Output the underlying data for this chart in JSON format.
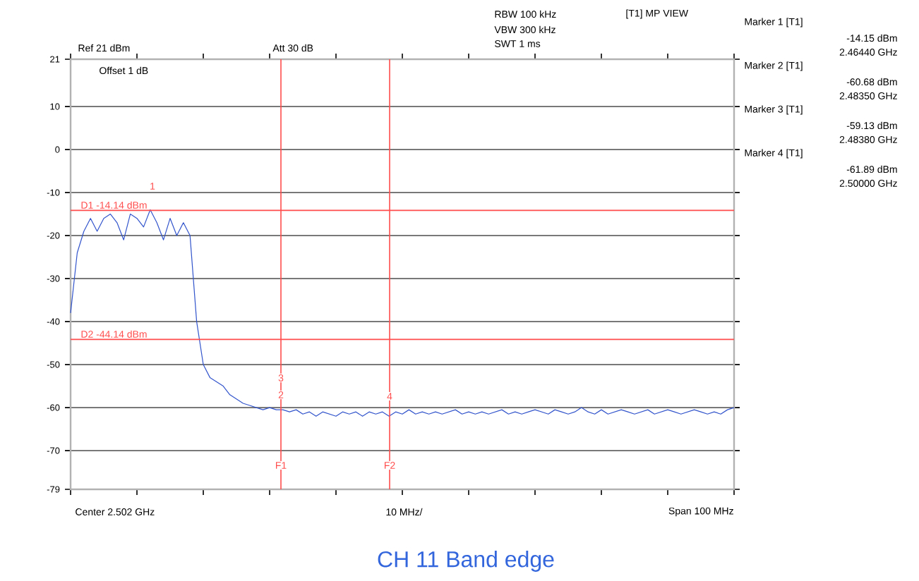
{
  "chart_data": {
    "type": "line",
    "title": "CH 11 Band edge",
    "categories": [
      null,
      null,
      null,
      null,
      null,
      null,
      null,
      null,
      null,
      null,
      null,
      null,
      null,
      null,
      null,
      null,
      null,
      null,
      null,
      null,
      null,
      null,
      null,
      null,
      null,
      null,
      null,
      null,
      null,
      null,
      null,
      null,
      null,
      null,
      null,
      null,
      null,
      null,
      null,
      null,
      null,
      null,
      null,
      null,
      null,
      null,
      null,
      null,
      null,
      null,
      null,
      null,
      null,
      null,
      null,
      null,
      null,
      null,
      null,
      null,
      null,
      null,
      null,
      null,
      null,
      null,
      null,
      null,
      null,
      null,
      null,
      null,
      null,
      null,
      null,
      null,
      null,
      null,
      null,
      null,
      null,
      null,
      null,
      null,
      null,
      null,
      null,
      null,
      null,
      null,
      null,
      null,
      null,
      null,
      null,
      null,
      null,
      null,
      null,
      null,
      null
    ],
    "ylim": [
      -79,
      21
    ],
    "yticks": [
      21,
      10,
      0,
      -10,
      -20,
      -30,
      -40,
      -50,
      -60,
      -70,
      -79
    ],
    "tick_labels": "y",
    "grid": "y",
    "series": [
      {
        "color": "#3355cc",
        "values": [
          -38,
          -24,
          -19,
          -16,
          -19,
          -16,
          -15,
          -17,
          -21,
          -15,
          -16,
          -18,
          -14,
          -17,
          -21,
          -16,
          -20,
          -17,
          -20,
          -40,
          -50,
          -53,
          -54,
          -55,
          -57,
          -58,
          -59,
          -59.5,
          -60,
          -60.5,
          -60,
          -60.5,
          -60.5,
          -61,
          -60.5,
          -61.5,
          -61,
          -62,
          -61,
          -61.5,
          -62,
          -61,
          -61.5,
          -61,
          -62,
          -61,
          -61.5,
          -61,
          -62,
          -61,
          -61.5,
          -60.5,
          -61.5,
          -61,
          -61.5,
          -61,
          -61.5,
          -61,
          -60.5,
          -61.5,
          -61,
          -61.5,
          -61,
          -61.5,
          -61,
          -60.5,
          -61.5,
          -61,
          -61.5,
          -61,
          -60.5,
          -61,
          -61.5,
          -60.5,
          -61,
          -61.5,
          -61,
          -60,
          -61,
          -61.5,
          -60.5,
          -61.5,
          -61,
          -60.5,
          -61,
          -61.5,
          -61,
          -60.5,
          -61.5,
          -61,
          -60.5,
          -61,
          -61.5,
          -61,
          -60.5,
          -61,
          -61.5,
          -61,
          -61.5,
          -60.5,
          -60
        ]
      }
    ],
    "ref_lines": [
      {
        "axis": "y",
        "value": -14.14,
        "label": "D1 -14.14 dBm",
        "color": "#ff4d4d"
      },
      {
        "axis": "y",
        "value": -44.14,
        "label": "D2 -44.14 dBm",
        "color": "#ff4d4d"
      }
    ],
    "annotations": [
      "Ref 21 dBm",
      "Att 30 dB",
      "Offset 1 dB",
      "RBW 100 kHz",
      "VBW 300 kHz",
      "SWT 1 ms",
      "[T1] MP VIEW",
      "Marker 1 [T1]",
      "-14.15 dBm",
      "2.46440 GHz",
      "Marker 2 [T1]",
      "-60.68 dBm",
      "2.48350 GHz",
      "Marker 3 [T1]",
      "-59.13 dBm",
      "2.48380 GHz",
      "Marker 4 [T1]",
      "-61.89 dBm",
      "2.50000 GHz",
      "Center 2.502 GHz",
      "10 MHz/",
      "Span 100 MHz",
      "F1",
      "F2",
      "1",
      "2",
      "3",
      "4"
    ]
  }
}
